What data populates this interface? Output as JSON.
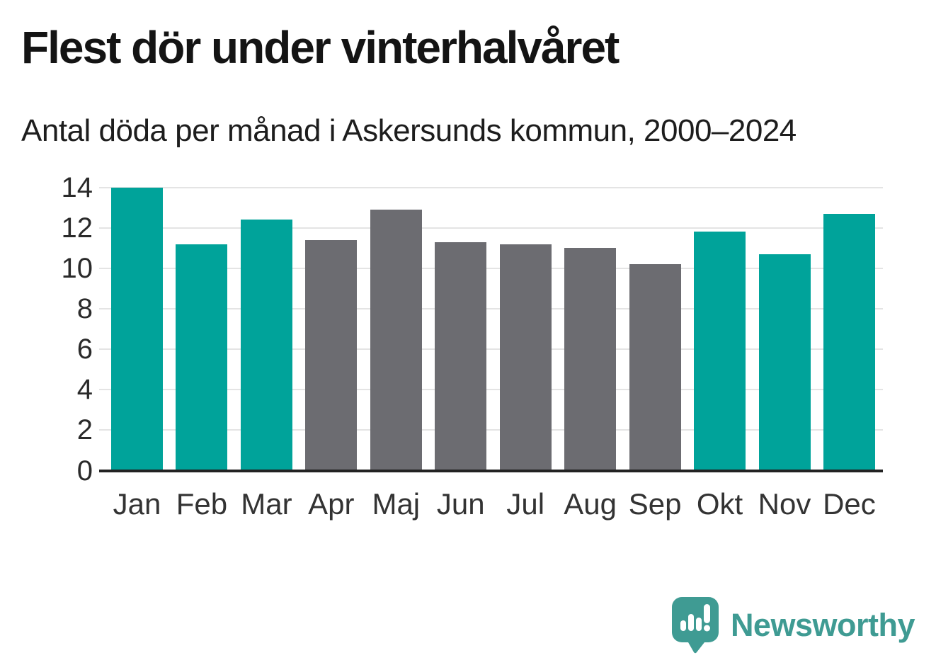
{
  "header": {
    "title": "Flest dör under vinterhalvåret",
    "subtitle": "Antal döda per månad i Askersunds kommun, 2000–2024"
  },
  "chart_data": {
    "type": "bar",
    "title": "Flest dör under vinterhalvåret",
    "subtitle": "Antal döda per månad i Askersunds kommun, 2000–2024",
    "categories": [
      "Jan",
      "Feb",
      "Mar",
      "Apr",
      "Maj",
      "Jun",
      "Jul",
      "Aug",
      "Sep",
      "Okt",
      "Nov",
      "Dec"
    ],
    "values": [
      14.0,
      11.2,
      12.4,
      11.4,
      12.9,
      11.3,
      11.2,
      11.0,
      10.2,
      11.8,
      10.7,
      12.7
    ],
    "bar_colors": [
      "#00a39a",
      "#00a39a",
      "#00a39a",
      "#6c6c71",
      "#6c6c71",
      "#6c6c71",
      "#6c6c71",
      "#6c6c71",
      "#6c6c71",
      "#00a39a",
      "#00a39a",
      "#00a39a"
    ],
    "highlight_color": "#00a39a",
    "base_color": "#6c6c71",
    "xlabel": "",
    "ylabel": "",
    "ylim": [
      0,
      14
    ],
    "yticks": [
      0,
      2,
      4,
      6,
      8,
      10,
      12,
      14
    ],
    "grid": "horizontal",
    "legend": "none",
    "gridline_color": "#e4e4e4",
    "axis_color": "#222222"
  },
  "footer": {
    "brand": "Newsworthy",
    "brand_color": "#3f9b93",
    "logo_icon": "bar-chart-speech-bubble-icon"
  }
}
